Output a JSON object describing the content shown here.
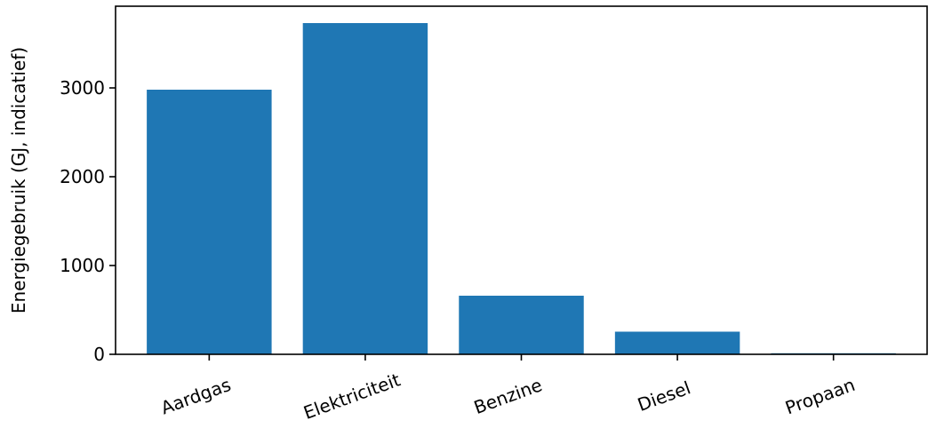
{
  "chart_data": {
    "type": "bar",
    "categories": [
      "Aardgas",
      "Elektriciteit",
      "Benzine",
      "Diesel",
      "Propaan"
    ],
    "values": [
      2980,
      3730,
      660,
      255,
      12
    ],
    "title": "",
    "xlabel": "",
    "ylabel": "Energiegebruik (GJ, indicatief)",
    "ylim": [
      0,
      3920
    ],
    "yticks": [
      0,
      1000,
      2000,
      3000
    ],
    "ytick_labels": [
      "0",
      "1000",
      "2000",
      "3000"
    ],
    "grid": false,
    "legend": "none",
    "bar_color": "#1f77b4",
    "x_tick_rotation_deg": -20
  }
}
